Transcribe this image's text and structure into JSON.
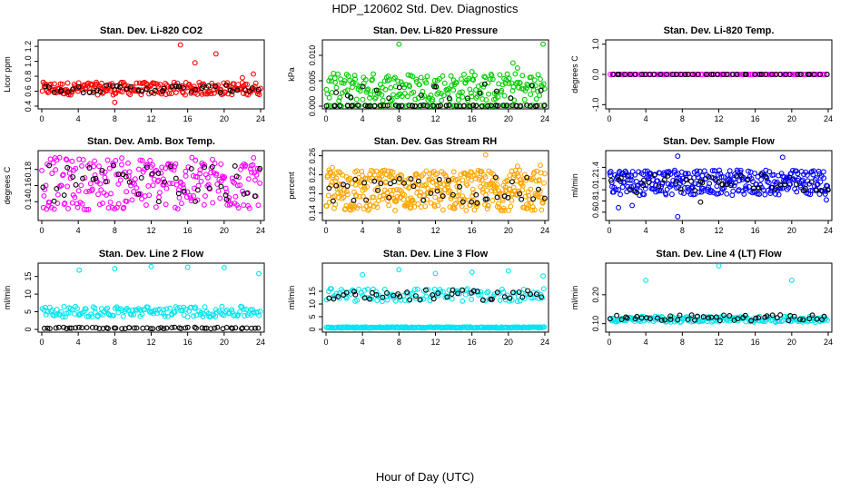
{
  "page": {
    "title": "HDP_120602  Std. Dev. Diagnostics",
    "x_title": "Hour of Day (UTC)"
  },
  "chart_data": [
    {
      "type": "scatter",
      "title": "Stan. Dev. Li-820 CO2",
      "ylabel": "Licor ppm",
      "xlim": [
        0,
        24
      ],
      "ylim": [
        0.4,
        1.25
      ],
      "xticks": [
        "0",
        "4",
        "8",
        "12",
        "16",
        "20",
        "24"
      ],
      "yticks": [
        "0.4",
        "0.6",
        "0.8",
        "1.0",
        "1.2"
      ],
      "ytick_values": [
        0.4,
        0.6,
        0.8,
        1.0,
        1.2
      ],
      "grid": false,
      "series": [
        {
          "color": "#ff0000",
          "band": [
            0.55,
            0.72
          ],
          "n": 240,
          "outliers": [
            [
              15.2,
              1.22
            ],
            [
              16.8,
              0.98
            ],
            [
              19.1,
              1.1
            ],
            [
              22.0,
              0.78
            ],
            [
              23.2,
              0.83
            ],
            [
              8.0,
              0.45
            ]
          ]
        },
        {
          "color": "#000000",
          "band": [
            0.58,
            0.68
          ],
          "n": 45,
          "outliers": []
        }
      ]
    },
    {
      "type": "scatter",
      "title": "Stan. Dev. Li-820 Pressure",
      "ylabel": "kPa",
      "xlim": [
        0,
        24
      ],
      "ylim": [
        0.0,
        0.0125
      ],
      "xticks": [
        "0",
        "4",
        "8",
        "12",
        "16",
        "20",
        "24"
      ],
      "yticks": [
        "0.000",
        "0.005",
        "0.010"
      ],
      "ytick_values": [
        0.0,
        0.005,
        0.01
      ],
      "grid": false,
      "series": [
        {
          "color": "#00cc00",
          "band": [
            0.001,
            0.0065
          ],
          "n": 220,
          "outliers": [
            [
              8.0,
              0.0122
            ],
            [
              23.8,
              0.0122
            ],
            [
              16.0,
              0.0068
            ],
            [
              20.5,
              0.0085
            ],
            [
              21.0,
              0.0075
            ]
          ]
        },
        {
          "color": "#00cc00",
          "band": [
            0.0,
            0.0002
          ],
          "n": 60,
          "outliers": []
        },
        {
          "color": "#000000",
          "band": [
            0.0,
            0.0002
          ],
          "n": 50,
          "outliers": []
        },
        {
          "color": "#000000",
          "band": [
            0.0015,
            0.0045
          ],
          "n": 18,
          "outliers": []
        }
      ]
    },
    {
      "type": "scatter",
      "title": "Stan. Dev. Li-820 Temp.",
      "ylabel": "degrees C",
      "xlim": [
        0,
        24
      ],
      "ylim": [
        -1.05,
        1.05
      ],
      "xticks": [
        "0",
        "4",
        "8",
        "12",
        "16",
        "20",
        "24"
      ],
      "yticks": [
        "-1.0",
        "0.0",
        "1.0"
      ],
      "ytick_values": [
        -1.0,
        0.0,
        1.0
      ],
      "grid": false,
      "series": [
        {
          "color": "#ff00ff",
          "band": [
            0.0,
            0.0
          ],
          "n": 100,
          "outliers": []
        },
        {
          "color": "#000000",
          "band": [
            0.0,
            0.0
          ],
          "n": 45,
          "outliers": []
        }
      ]
    },
    {
      "type": "scatter",
      "title": "Stan. Dev. Amb. Box Temp.",
      "ylabel": "degrees C",
      "xlim": [
        0,
        24
      ],
      "ylim": [
        0.12,
        0.2
      ],
      "xticks": [
        "0",
        "4",
        "8",
        "12",
        "16",
        "20",
        "24"
      ],
      "yticks": [
        "0.14",
        "0.16",
        "0.18"
      ],
      "ytick_values": [
        0.14,
        0.16,
        0.18
      ],
      "grid": false,
      "series": [
        {
          "color": "#ff00ff",
          "band": [
            0.13,
            0.195
          ],
          "n": 260,
          "outliers": []
        },
        {
          "color": "#000000",
          "band": [
            0.14,
            0.185
          ],
          "n": 45,
          "outliers": []
        }
      ]
    },
    {
      "type": "scatter",
      "title": "Stan. Dev. Gas Stream RH",
      "ylabel": "percent",
      "xlim": [
        0,
        24
      ],
      "ylim": [
        0.13,
        0.265
      ],
      "xticks": [
        "0",
        "4",
        "8",
        "12",
        "16",
        "20",
        "24"
      ],
      "yticks": [
        "0.14",
        "0.18",
        "0.22",
        "0.26"
      ],
      "ytick_values": [
        0.14,
        0.18,
        0.22,
        0.26
      ],
      "grid": false,
      "series": [
        {
          "color": "#ffa500",
          "band": [
            0.145,
            0.23
          ],
          "n": 420,
          "outliers": [
            [
              17.5,
              0.262
            ],
            [
              0.7,
              0.235
            ],
            [
              23.5,
              0.24
            ],
            [
              21.0,
              0.238
            ]
          ]
        },
        {
          "color": "#000000",
          "band": [
            0.16,
            0.215
          ],
          "n": 45,
          "outliers": []
        }
      ]
    },
    {
      "type": "scatter",
      "title": "Stan. Dev. Sample Flow",
      "ylabel": "ml/min",
      "xlim": [
        0,
        24
      ],
      "ylim": [
        0.5,
        1.65
      ],
      "xticks": [
        "0",
        "4",
        "8",
        "12",
        "16",
        "20",
        "24"
      ],
      "yticks": [
        "0.6",
        "0.8",
        "1.0",
        "1.2",
        "1.4"
      ],
      "ytick_values": [
        0.6,
        0.8,
        1.0,
        1.2,
        1.4
      ],
      "grid": false,
      "series": [
        {
          "color": "#0000ff",
          "band": [
            0.9,
            1.35
          ],
          "n": 330,
          "outliers": [
            [
              7.5,
              0.52
            ],
            [
              1.0,
              0.68
            ],
            [
              2.5,
              0.72
            ],
            [
              7.5,
              1.6
            ],
            [
              19.0,
              1.58
            ],
            [
              23.8,
              0.82
            ]
          ]
        },
        {
          "color": "#000000",
          "band": [
            0.95,
            1.3
          ],
          "n": 45,
          "outliers": [
            [
              10.0,
              0.78
            ]
          ]
        }
      ]
    },
    {
      "type": "scatter",
      "title": "Stan. Dev. Line 2 Flow",
      "ylabel": "ml/min",
      "xlim": [
        0,
        24
      ],
      "ylim": [
        0,
        18
      ],
      "xticks": [
        "0",
        "4",
        "8",
        "12",
        "16",
        "20",
        "24"
      ],
      "yticks": [
        "0",
        "5",
        "10",
        "15"
      ],
      "ytick_values": [
        0,
        5,
        10,
        15
      ],
      "grid": false,
      "series": [
        {
          "color": "#00e5ee",
          "band": [
            3.5,
            6.5
          ],
          "n": 160,
          "outliers": [
            [
              4.1,
              16.8
            ],
            [
              8.0,
              17.2
            ],
            [
              12.0,
              17.8
            ],
            [
              16.0,
              17.6
            ],
            [
              20.0,
              17.5
            ],
            [
              23.8,
              15.8
            ]
          ]
        },
        {
          "color": "#000000",
          "band": [
            0.2,
            0.6
          ],
          "n": 60,
          "outliers": []
        }
      ]
    },
    {
      "type": "scatter",
      "title": "Stan. Dev. Line 3 Flow",
      "ylabel": "ml/min",
      "xlim": [
        0,
        24
      ],
      "ylim": [
        0,
        25
      ],
      "xticks": [
        "0",
        "4",
        "8",
        "12",
        "16",
        "20",
        "24"
      ],
      "yticks": [
        "0",
        "5",
        "10",
        "15"
      ],
      "ytick_values": [
        0,
        5,
        10,
        15
      ],
      "grid": false,
      "series": [
        {
          "color": "#00e5ee",
          "band": [
            0.5,
            1.0
          ],
          "n": 220,
          "outliers": []
        },
        {
          "color": "#00e5ee",
          "band": [
            11.0,
            16.0
          ],
          "n": 130,
          "outliers": [
            [
              4.0,
              21.5
            ],
            [
              8.0,
              23.5
            ],
            [
              12.0,
              22.0
            ],
            [
              16.0,
              22.5
            ],
            [
              20.0,
              23.0
            ],
            [
              23.8,
              21.0
            ]
          ]
        },
        {
          "color": "#000000",
          "band": [
            11.5,
            15.5
          ],
          "n": 45,
          "outliers": []
        }
      ]
    },
    {
      "type": "scatter",
      "title": "Stan. Dev. Line 4 (LT) Flow",
      "ylabel": "ml/min",
      "xlim": [
        0,
        24
      ],
      "ylim": [
        0.08,
        0.3
      ],
      "xticks": [
        "0",
        "4",
        "8",
        "12",
        "16",
        "20",
        "24"
      ],
      "yticks": [
        "0.10",
        "0.20"
      ],
      "ytick_values": [
        0.1,
        0.2
      ],
      "grid": false,
      "series": [
        {
          "color": "#00e5ee",
          "band": [
            0.105,
            0.125
          ],
          "n": 170,
          "outliers": [
            [
              4.0,
              0.25
            ],
            [
              12.0,
              0.3
            ],
            [
              20.0,
              0.25
            ]
          ]
        },
        {
          "color": "#000000",
          "band": [
            0.11,
            0.13
          ],
          "n": 50,
          "outliers": []
        }
      ]
    }
  ]
}
